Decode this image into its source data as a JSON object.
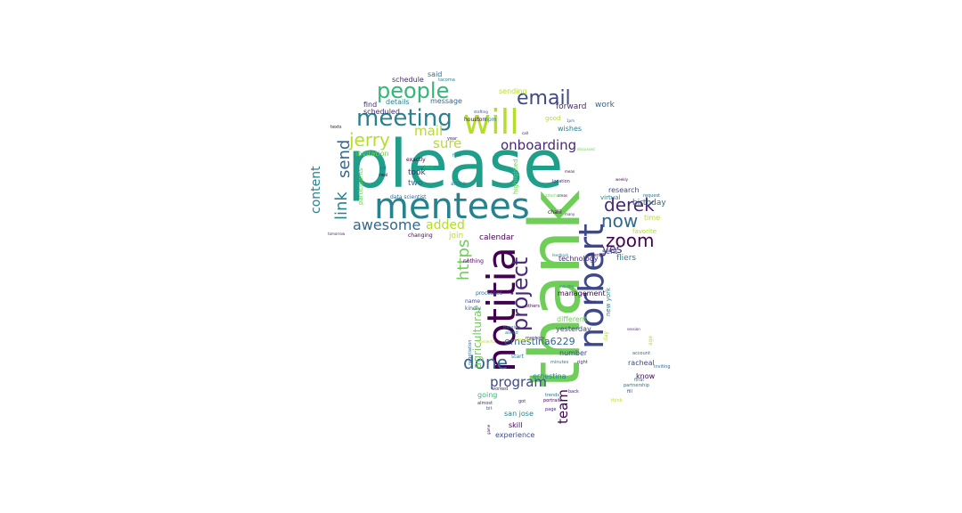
{
  "colors": [
    "#440154",
    "#482878",
    "#3e4989",
    "#31688e",
    "#26828e",
    "#1f9e89",
    "#35b779",
    "#6ece58",
    "#b5de2b",
    "#fde725"
  ],
  "words": [
    {
      "text": "please",
      "color": "#1f9e89"
    },
    {
      "text": "thank",
      "color": "#6ece58"
    },
    {
      "text": "mentees",
      "color": "#26828e"
    },
    {
      "text": "will",
      "color": "#b5de2b"
    },
    {
      "text": "notitia",
      "color": "#440154"
    },
    {
      "text": "norbert",
      "color": "#3e4989"
    },
    {
      "text": "meeting",
      "color": "#26828e"
    },
    {
      "text": "project",
      "color": "#482878"
    },
    {
      "text": "people",
      "color": "#35b779"
    },
    {
      "text": "email",
      "color": "#3e4989"
    },
    {
      "text": "jerry",
      "color": "#b5de2b"
    },
    {
      "text": "done",
      "color": "#31688e"
    },
    {
      "text": "derek",
      "color": "#482878"
    },
    {
      "text": "zoom",
      "color": "#440154"
    },
    {
      "text": "now",
      "color": "#31688e"
    },
    {
      "text": "onboarding",
      "color": "#482878"
    },
    {
      "text": "link",
      "color": "#26828e"
    },
    {
      "text": "send",
      "color": "#31688e"
    },
    {
      "text": "awesome",
      "color": "#31688e"
    },
    {
      "text": "https",
      "color": "#6ece58"
    },
    {
      "text": "program",
      "color": "#3e4989"
    },
    {
      "text": "team",
      "color": "#440154"
    },
    {
      "text": "mail",
      "color": "#b5de2b"
    },
    {
      "text": "sure",
      "color": "#b5de2b"
    },
    {
      "text": "content",
      "color": "#26828e"
    },
    {
      "text": "added",
      "color": "#b5de2b"
    },
    {
      "text": "yes",
      "color": "#482878"
    },
    {
      "text": "agricultural",
      "color": "#6ece58"
    },
    {
      "text": "ernestina6229",
      "color": "#31688e"
    },
    {
      "text": "calendar",
      "color": "#440154"
    },
    {
      "text": "birthday",
      "color": "#31688e"
    },
    {
      "text": "fliers",
      "color": "#26828e"
    },
    {
      "text": "work",
      "color": "#31688e"
    },
    {
      "text": "forward",
      "color": "#482878"
    },
    {
      "text": "took",
      "color": "#482878"
    },
    {
      "text": "two",
      "color": "#31688e"
    },
    {
      "text": "join",
      "color": "#b5de2b"
    },
    {
      "text": "sending",
      "color": "#b5de2b"
    },
    {
      "text": "message",
      "color": "#31688e"
    },
    {
      "text": "schedule",
      "color": "#482878"
    },
    {
      "text": "said",
      "color": "#31688e"
    },
    {
      "text": "details",
      "color": "#26828e"
    },
    {
      "text": "find",
      "color": "#482878"
    },
    {
      "text": "scheduled",
      "color": "#482878"
    },
    {
      "text": "invitation",
      "color": "#6ece58"
    },
    {
      "text": "participants",
      "color": "#6ece58"
    },
    {
      "text": "technology",
      "color": "#482878"
    },
    {
      "text": "management",
      "color": "#440154"
    },
    {
      "text": "different",
      "color": "#6ece58"
    },
    {
      "text": "sent",
      "color": "#3e4989"
    },
    {
      "text": "time",
      "color": "#b5de2b"
    },
    {
      "text": "favorite",
      "color": "#b5de2b"
    },
    {
      "text": "yesterday",
      "color": "#3e4989"
    },
    {
      "text": "number",
      "color": "#3e4989"
    },
    {
      "text": "ernestina",
      "color": "#26828e"
    },
    {
      "text": "racheal",
      "color": "#3e4989"
    },
    {
      "text": "know",
      "color": "#440154"
    },
    {
      "text": "san jose",
      "color": "#26828e"
    },
    {
      "text": "skill",
      "color": "#440154"
    },
    {
      "text": "experience",
      "color": "#3e4989"
    },
    {
      "text": "going",
      "color": "#35b779"
    },
    {
      "text": "new york",
      "color": "#26828e"
    },
    {
      "text": "wishes",
      "color": "#26828e"
    },
    {
      "text": "good",
      "color": "#b5de2b"
    },
    {
      "text": "research",
      "color": "#3e4989"
    },
    {
      "text": "virtual",
      "color": "#26828e"
    },
    {
      "text": "highlighted",
      "color": "#6ece58"
    },
    {
      "text": "exactly",
      "color": "#440154"
    },
    {
      "text": "data scientist",
      "color": "#31688e"
    },
    {
      "text": "africa",
      "color": "#26828e"
    },
    {
      "text": "changing",
      "color": "#440154"
    },
    {
      "text": "houston",
      "color": "#440154"
    },
    {
      "text": "6pm",
      "color": "#26828e"
    },
    {
      "text": "name",
      "color": "#3e4989"
    },
    {
      "text": "kindly",
      "color": "#31688e"
    },
    {
      "text": "processes",
      "color": "#31688e"
    },
    {
      "text": "nothing",
      "color": "#440154"
    },
    {
      "text": "chalii",
      "color": "#440154"
    },
    {
      "text": "tacoma",
      "color": "#26828e"
    },
    {
      "text": "request",
      "color": "#31688e"
    },
    {
      "text": "location",
      "color": "#482878"
    },
    {
      "text": "science",
      "color": "#440154"
    },
    {
      "text": "others",
      "color": "#440154"
    },
    {
      "text": "passion",
      "color": "#31688e"
    },
    {
      "text": "asked",
      "color": "#26828e"
    },
    {
      "text": "mentors",
      "color": "#482878"
    },
    {
      "text": "minutes",
      "color": "#26828e"
    },
    {
      "text": "start",
      "color": "#26828e"
    },
    {
      "text": "right",
      "color": "#482878"
    },
    {
      "text": "portrait",
      "color": "#440154"
    },
    {
      "text": "page",
      "color": "#482878"
    },
    {
      "text": "trends",
      "color": "#31688e"
    },
    {
      "text": "back",
      "color": "#482878"
    },
    {
      "text": "account",
      "color": "#31688e"
    },
    {
      "text": "inviting",
      "color": "#31688e"
    },
    {
      "text": "final",
      "color": "#26828e"
    },
    {
      "text": "partnership",
      "color": "#31688e"
    },
    {
      "text": "fill",
      "color": "#3e4989"
    },
    {
      "text": "think",
      "color": "#b5de2b"
    },
    {
      "text": "age",
      "color": "#b5de2b"
    },
    {
      "text": "day",
      "color": "#b5de2b"
    },
    {
      "text": "negotiation",
      "color": "#31688e"
    },
    {
      "text": "almost",
      "color": "#482878"
    },
    {
      "text": "bit",
      "color": "#31688e"
    },
    {
      "text": "got",
      "color": "#482878"
    },
    {
      "text": "worked",
      "color": "#482878"
    },
    {
      "text": "help",
      "color": "#35b779"
    },
    {
      "text": "first",
      "color": "#26828e"
    },
    {
      "text": "year",
      "color": "#482878"
    },
    {
      "text": "weekly",
      "color": "#440154"
    },
    {
      "text": "mean",
      "color": "#440154"
    },
    {
      "text": "areas",
      "color": "#440154"
    },
    {
      "text": "many",
      "color": "#482878"
    },
    {
      "text": "attached",
      "color": "#6ece58"
    },
    {
      "text": "tomorrow",
      "color": "#482878"
    },
    {
      "text": "texts",
      "color": "#440154"
    },
    {
      "text": "yet",
      "color": "#26828e"
    },
    {
      "text": "real",
      "color": "#440154"
    },
    {
      "text": "call",
      "color": "#440154"
    },
    {
      "text": "1pm",
      "color": "#31688e"
    },
    {
      "text": "discussed",
      "color": "#6ece58"
    },
    {
      "text": "drafting",
      "color": "#3e4989"
    },
    {
      "text": "interested",
      "color": "#b5de2b"
    },
    {
      "text": "game",
      "color": "#440154"
    },
    {
      "text": "wonderful",
      "color": "#b5de2b"
    },
    {
      "text": "feedback",
      "color": "#26828e"
    },
    {
      "text": "industry",
      "color": "#26828e"
    },
    {
      "text": "unique",
      "color": "#482878"
    },
    {
      "text": "session",
      "color": "#482878"
    }
  ]
}
